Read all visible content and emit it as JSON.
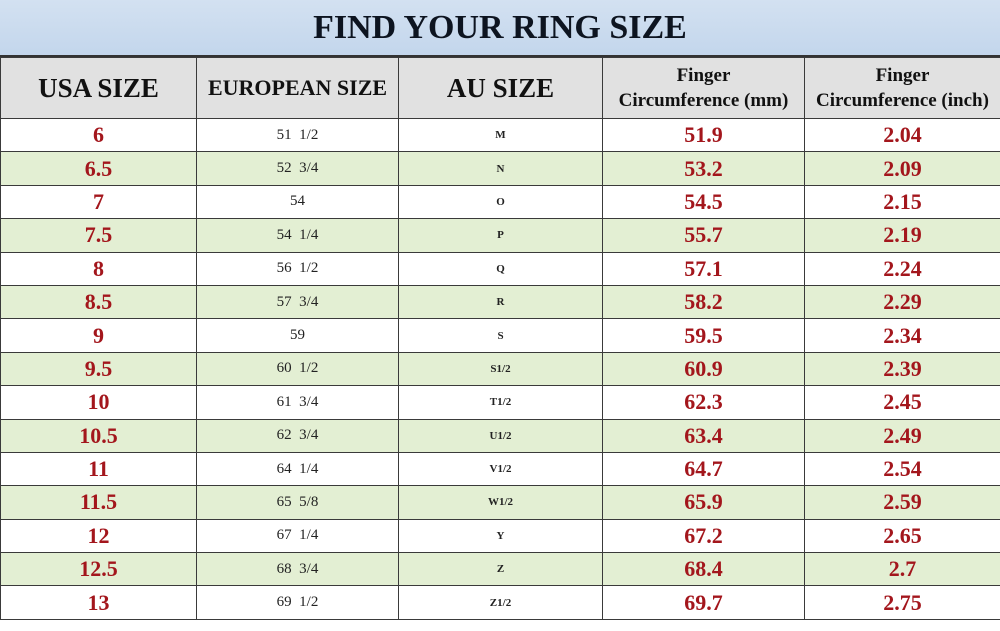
{
  "title": "FIND YOUR RING SIZE",
  "headers": {
    "usa": "USA SIZE",
    "eu": "EUROPEAN SIZE",
    "au": "AU SIZE",
    "mm_line1": "Finger",
    "mm_line2": "Circumference (mm)",
    "inch_line1": "Finger",
    "inch_line2": "Circumference (inch)"
  },
  "colors": {
    "title_bg": "#c9dbef",
    "header_bg": "#e1e1e1",
    "alt_row_bg": "#e3efd3",
    "value_text": "#a3161c"
  },
  "rows": [
    {
      "usa": "6",
      "eu": "51  1/2",
      "au": "M",
      "mm": "51.9",
      "inch": "2.04"
    },
    {
      "usa": "6.5",
      "eu": "52  3/4",
      "au": "N",
      "mm": "53.2",
      "inch": "2.09"
    },
    {
      "usa": "7",
      "eu": "54",
      "au": "O",
      "mm": "54.5",
      "inch": "2.15"
    },
    {
      "usa": "7.5",
      "eu": "54  1/4",
      "au": "P",
      "mm": "55.7",
      "inch": "2.19"
    },
    {
      "usa": "8",
      "eu": "56  1/2",
      "au": "Q",
      "mm": "57.1",
      "inch": "2.24"
    },
    {
      "usa": "8.5",
      "eu": "57  3/4",
      "au": "R",
      "mm": "58.2",
      "inch": "2.29"
    },
    {
      "usa": "9",
      "eu": "59",
      "au": "S",
      "mm": "59.5",
      "inch": "2.34"
    },
    {
      "usa": "9.5",
      "eu": "60  1/2",
      "au": "S1/2",
      "mm": "60.9",
      "inch": "2.39"
    },
    {
      "usa": "10",
      "eu": "61  3/4",
      "au": "T1/2",
      "mm": "62.3",
      "inch": "2.45"
    },
    {
      "usa": "10.5",
      "eu": "62  3/4",
      "au": "U1/2",
      "mm": "63.4",
      "inch": "2.49"
    },
    {
      "usa": "11",
      "eu": "64  1/4",
      "au": "V1/2",
      "mm": "64.7",
      "inch": "2.54"
    },
    {
      "usa": "11.5",
      "eu": "65  5/8",
      "au": "W1/2",
      "mm": "65.9",
      "inch": "2.59"
    },
    {
      "usa": "12",
      "eu": "67  1/4",
      "au": "Y",
      "mm": "67.2",
      "inch": "2.65"
    },
    {
      "usa": "12.5",
      "eu": "68  3/4",
      "au": "Z",
      "mm": "68.4",
      "inch": "2.7"
    },
    {
      "usa": "13",
      "eu": "69  1/2",
      "au": "Z1/2",
      "mm": "69.7",
      "inch": "2.75"
    }
  ]
}
